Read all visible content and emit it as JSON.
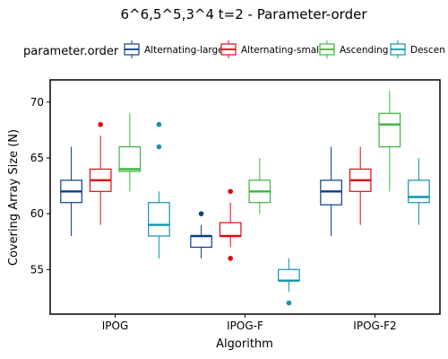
{
  "chart_data": {
    "type": "boxplot",
    "title": "6^6,5^5,3^4 t=2 - Parameter-order",
    "xlabel": "Algorithm",
    "ylabel": "Covering Array Size (N)",
    "ylim": [
      51,
      72
    ],
    "yticks": [
      55,
      60,
      65,
      70
    ],
    "categories": [
      "IPOG",
      "IPOG-F",
      "IPOG-F2"
    ],
    "legend": {
      "title": "parameter.order",
      "position": "top",
      "entries": [
        "Alternating-large",
        "Alternating-small",
        "Ascending",
        "Descen"
      ]
    },
    "series": [
      {
        "name": "Alternating-large",
        "color": "#0b3f86",
        "boxes": [
          {
            "category": "IPOG",
            "min": 58,
            "q1": 61,
            "median": 62,
            "q3": 63,
            "max": 66,
            "outliers": []
          },
          {
            "category": "IPOG-F",
            "min": 56,
            "q1": 57,
            "median": 58,
            "q3": 58,
            "max": 59,
            "outliers": [
              60
            ]
          },
          {
            "category": "IPOG-F2",
            "min": 58,
            "q1": 60.8,
            "median": 62,
            "q3": 63,
            "max": 66,
            "outliers": []
          }
        ]
      },
      {
        "name": "Alternating-small",
        "color": "#e30613",
        "boxes": [
          {
            "category": "IPOG",
            "min": 59,
            "q1": 62,
            "median": 63,
            "q3": 64,
            "max": 67,
            "outliers": [
              68
            ]
          },
          {
            "category": "IPOG-F",
            "min": 57,
            "q1": 58,
            "median": 58,
            "q3": 59.2,
            "max": 61,
            "outliers": [
              62,
              56
            ]
          },
          {
            "category": "IPOG-F2",
            "min": 59,
            "q1": 62,
            "median": 63,
            "q3": 64,
            "max": 66,
            "outliers": []
          }
        ]
      },
      {
        "name": "Ascending",
        "color": "#3cb43c",
        "boxes": [
          {
            "category": "IPOG",
            "min": 62,
            "q1": 63.8,
            "median": 64,
            "q3": 66,
            "max": 69,
            "outliers": []
          },
          {
            "category": "IPOG-F",
            "min": 60,
            "q1": 61,
            "median": 62,
            "q3": 63,
            "max": 65,
            "outliers": []
          },
          {
            "category": "IPOG-F2",
            "min": 62,
            "q1": 66,
            "median": 68,
            "q3": 69,
            "max": 71,
            "outliers": []
          }
        ]
      },
      {
        "name": "Descen",
        "color": "#1493b0",
        "boxes": [
          {
            "category": "IPOG",
            "min": 56,
            "q1": 58,
            "median": 59,
            "q3": 61,
            "max": 62,
            "outliers": [
              68,
              66
            ]
          },
          {
            "category": "IPOG-F",
            "min": 53,
            "q1": 54,
            "median": 54,
            "q3": 55,
            "max": 56,
            "outliers": [
              52
            ]
          },
          {
            "category": "IPOG-F2",
            "min": 59,
            "q1": 61,
            "median": 61.5,
            "q3": 63,
            "max": 65,
            "outliers": []
          }
        ]
      }
    ]
  }
}
